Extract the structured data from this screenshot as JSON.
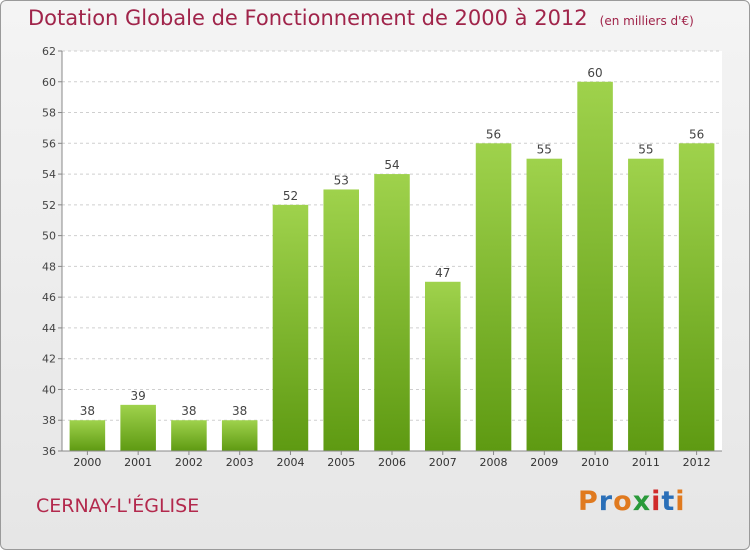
{
  "header": {
    "title": "Dotation Globale de Fonctionnement de 2000 à 2012",
    "subtitle": "(en milliers d'€)"
  },
  "footer": {
    "commune": "CERNAY-L'ÉGLISE",
    "logo": "Proxiti"
  },
  "colors": {
    "bar_top": "#9fd24c",
    "bar_bottom": "#5e9a12",
    "title": "#a0244a",
    "logo_letters": [
      "#e07a1f",
      "#2a6fb8",
      "#e07a1f",
      "#2a9a3a",
      "#d02a2a",
      "#2a6fb8",
      "#e07a1f"
    ]
  },
  "chart_data": {
    "type": "bar",
    "title": "Dotation Globale de Fonctionnement de 2000 à 2012",
    "categories": [
      "2000",
      "2001",
      "2002",
      "2003",
      "2004",
      "2005",
      "2006",
      "2007",
      "2008",
      "2009",
      "2010",
      "2011",
      "2012"
    ],
    "values": [
      38,
      39,
      38,
      38,
      52,
      53,
      54,
      47,
      56,
      55,
      60,
      55,
      56
    ],
    "ylim": [
      36,
      62
    ],
    "yticks": [
      36,
      38,
      40,
      42,
      44,
      46,
      48,
      50,
      52,
      54,
      56,
      58,
      60,
      62
    ],
    "grid": "horizontal dashed",
    "xlabel": "",
    "ylabel": ""
  }
}
